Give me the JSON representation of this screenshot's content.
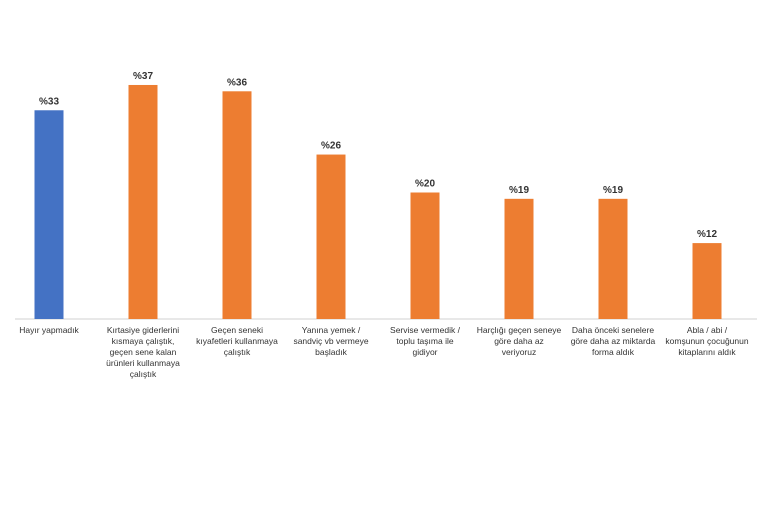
{
  "chart_data": {
    "type": "bar",
    "categories": [
      [
        "Hayır yapmadık"
      ],
      [
        "Kırtasiye giderlerini",
        "kısmaya çalıştık,",
        "geçen sene kalan",
        "ürünleri kullanmaya",
        "çalıştık"
      ],
      [
        "Geçen seneki",
        "kıyafetleri kullanmaya",
        "çalıştık"
      ],
      [
        "Yanına yemek /",
        "sandviç vb vermeye",
        "başladık"
      ],
      [
        "Servise vermedik /",
        "toplu taşıma ile",
        "gidiyor"
      ],
      [
        "Harçlığı geçen seneye",
        "göre daha az",
        "veriyoruz"
      ],
      [
        "Daha önceki senelere",
        "göre daha az miktarda",
        "forma aldık"
      ],
      [
        "Abla / abi /",
        "komşunun çocuğunun",
        "kitaplarını aldık"
      ]
    ],
    "values": [
      33,
      37,
      36,
      26,
      20,
      19,
      19,
      12
    ],
    "value_labels": [
      "%33",
      "%37",
      "%36",
      "%26",
      "%20",
      "%19",
      "%19",
      "%12"
    ],
    "colors": [
      "#4472C4",
      "#ED7D31",
      "#ED7D31",
      "#ED7D31",
      "#ED7D31",
      "#ED7D31",
      "#ED7D31",
      "#ED7D31"
    ],
    "ylim": [
      0,
      40
    ],
    "grid": false,
    "legend": "none"
  }
}
